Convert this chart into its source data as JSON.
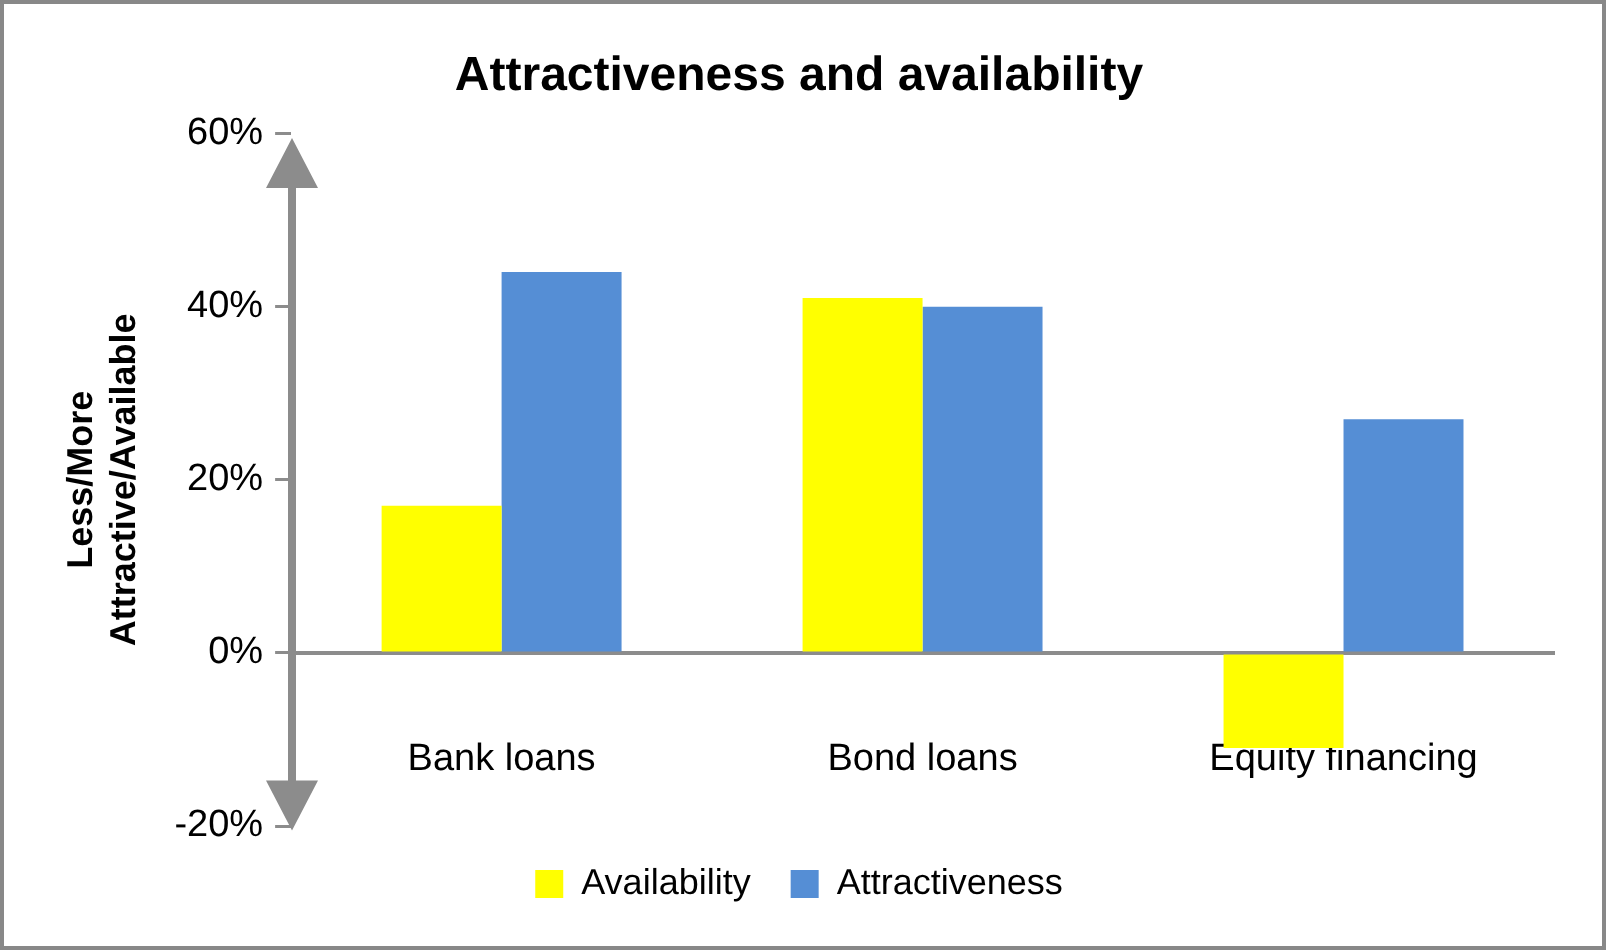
{
  "chart_data": {
    "type": "bar",
    "title": "Attractiveness and availability",
    "ylabel": "Less/More\nAttractive/Available",
    "categories": [
      "Bank loans",
      "Bond loans",
      "Equity financing"
    ],
    "series": [
      {
        "name": "Availability",
        "color": "#ffff00",
        "values": [
          0.17,
          0.41,
          -0.11
        ]
      },
      {
        "name": "Attractiveness",
        "color": "#558ed5",
        "values": [
          0.44,
          0.4,
          0.27
        ]
      }
    ],
    "ylim": [
      -0.2,
      0.6
    ],
    "yticks": [
      {
        "value": -0.2,
        "label": "-20%"
      },
      {
        "value": 0,
        "label": "0%"
      },
      {
        "value": 0.2,
        "label": "20%"
      },
      {
        "value": 0.4,
        "label": "40%"
      },
      {
        "value": 0.6,
        "label": "60%"
      }
    ],
    "legend": "bottom"
  }
}
